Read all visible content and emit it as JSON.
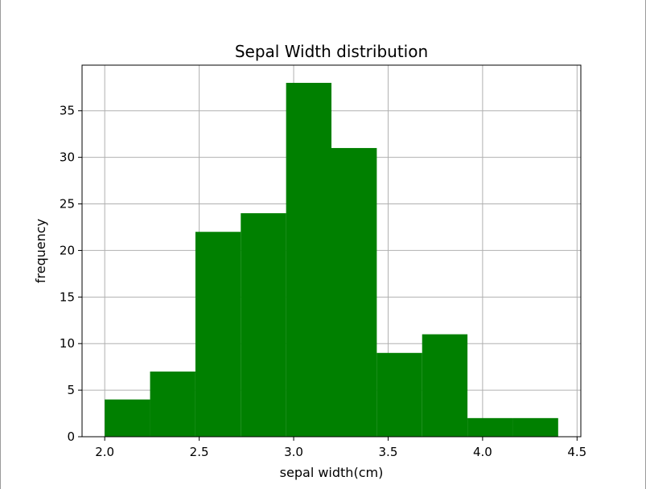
{
  "chart_data": {
    "type": "bar",
    "subtype": "histogram",
    "title": "Sepal Width distribution",
    "xlabel": "sepal width(cm)",
    "ylabel": "frequency",
    "bin_edges": [
      2.0,
      2.24,
      2.48,
      2.72,
      2.96,
      3.2,
      3.44,
      3.68,
      3.92,
      4.16,
      4.4
    ],
    "values": [
      4,
      7,
      22,
      24,
      38,
      31,
      9,
      11,
      2,
      2
    ],
    "xlim": [
      1.88,
      4.52
    ],
    "ylim": [
      0,
      39.9
    ],
    "xticks": [
      2.0,
      2.5,
      3.0,
      3.5,
      4.0,
      4.5
    ],
    "xtick_labels": [
      "2.0",
      "2.5",
      "3.0",
      "3.5",
      "4.0",
      "4.5"
    ],
    "yticks": [
      0,
      5,
      10,
      15,
      20,
      25,
      30,
      35
    ],
    "ytick_labels": [
      "0",
      "5",
      "10",
      "15",
      "20",
      "25",
      "30",
      "35"
    ],
    "grid": true,
    "color": "#008000"
  }
}
